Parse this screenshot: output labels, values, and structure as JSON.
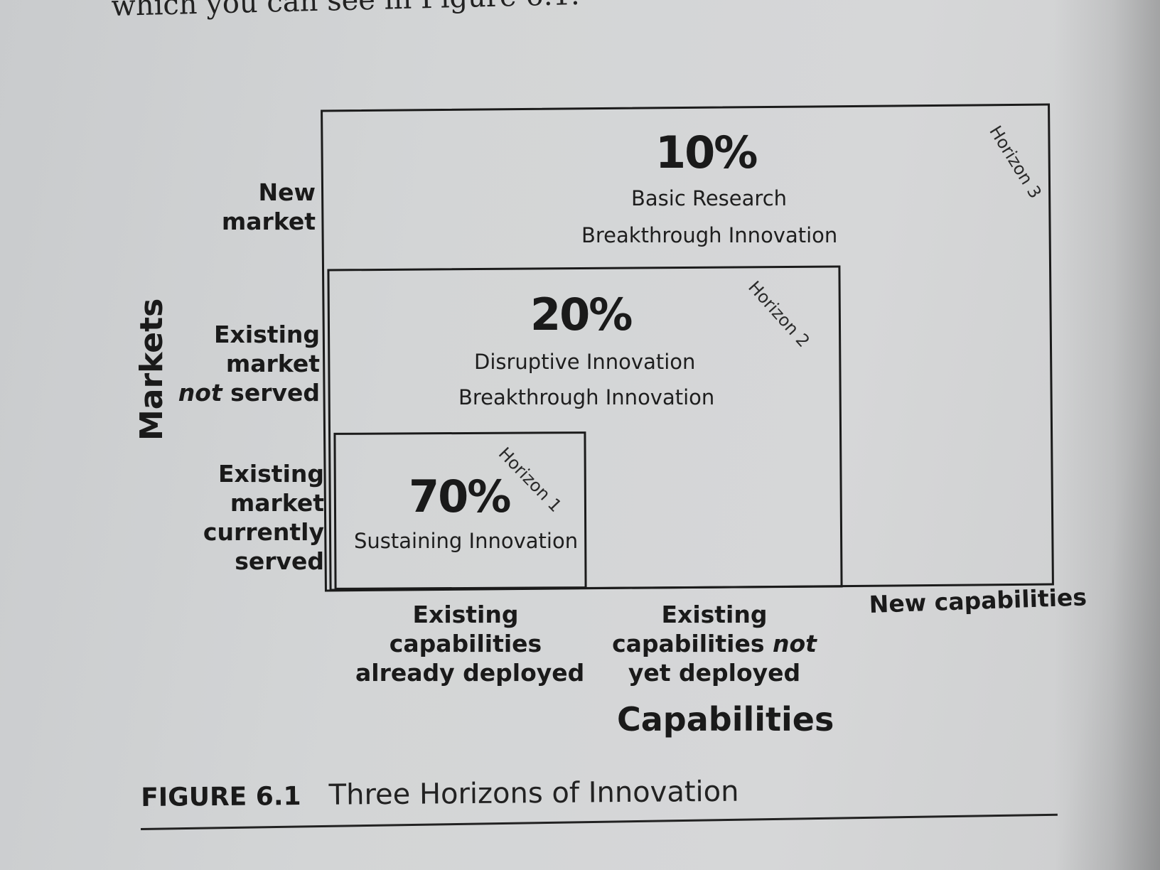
{
  "intro_text": "which you can see in Figure 6.1.",
  "horizons": [
    {
      "percent": "10%",
      "line1": "Basic Research",
      "line2": "Breakthrough Innovation",
      "label": "Horizon 3"
    },
    {
      "percent": "20%",
      "line1": "Disruptive Innovation",
      "line2": "Breakthrough Innovation",
      "label": "Horizon 2"
    },
    {
      "percent": "70%",
      "line1": "Sustaining Innovation",
      "label": "Horizon 1"
    }
  ],
  "markets": {
    "axis_label": "Markets",
    "rows": [
      {
        "line1": "New",
        "line2": "market"
      },
      {
        "line1": "Existing",
        "line2": "market",
        "line3_em": "not",
        "line3_rest": " served"
      },
      {
        "line1": "Existing",
        "line2": "market",
        "line3": "currently",
        "line4": "served"
      }
    ]
  },
  "capabilities": {
    "axis_label": "Capabilities",
    "cols": [
      {
        "line1": "Existing",
        "line2": "capabilities",
        "line3": "already deployed"
      },
      {
        "line1": "Existing",
        "line2_pre": "capabilities ",
        "line2_em": "not",
        "line3": "yet deployed"
      },
      {
        "line1": "New capabilities"
      }
    ]
  },
  "caption": {
    "number": "FIGURE 6.1",
    "title": "Three Horizons of Innovation"
  }
}
